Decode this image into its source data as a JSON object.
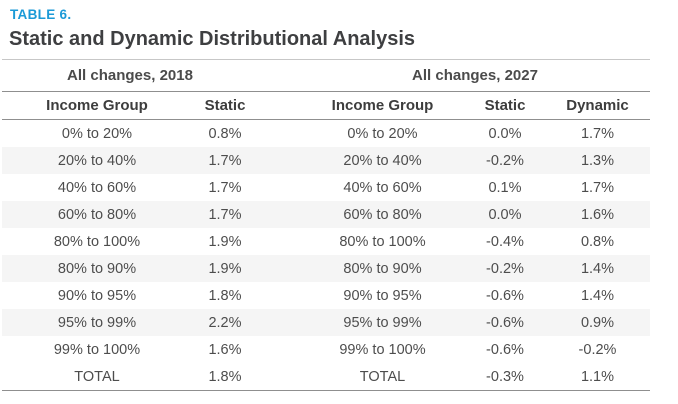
{
  "chart_data": {
    "type": "table",
    "table_label": "TABLE 6.",
    "title": "Static and Dynamic Distributional Analysis",
    "column_groups": [
      "All changes, 2018",
      "All changes, 2027"
    ],
    "columns": [
      "Income Group",
      "Static",
      "Income Group",
      "Static",
      "Dynamic"
    ],
    "rows": [
      [
        "0% to 20%",
        "0.8%",
        "0% to 20%",
        "0.0%",
        "1.7%"
      ],
      [
        "20% to 40%",
        "1.7%",
        "20% to 40%",
        "-0.2%",
        "1.3%"
      ],
      [
        "40% to 60%",
        "1.7%",
        "40% to 60%",
        "0.1%",
        "1.7%"
      ],
      [
        "60% to 80%",
        "1.7%",
        "60% to 80%",
        "0.0%",
        "1.6%"
      ],
      [
        "80% to 100%",
        "1.9%",
        "80% to 100%",
        "-0.4%",
        "0.8%"
      ],
      [
        "80% to 90%",
        "1.9%",
        "80% to 90%",
        "-0.2%",
        "1.4%"
      ],
      [
        "90% to 95%",
        "1.8%",
        "90% to 95%",
        "-0.6%",
        "1.4%"
      ],
      [
        "95% to 99%",
        "2.2%",
        "95% to 99%",
        "-0.6%",
        "0.9%"
      ],
      [
        "99% to 100%",
        "1.6%",
        "99% to 100%",
        "-0.6%",
        "-0.2%"
      ],
      [
        "TOTAL",
        "1.8%",
        "TOTAL",
        "-0.3%",
        "1.1%"
      ]
    ],
    "layout": {
      "striped_rows": "even rows 2,4,6,8 (light gray)",
      "grid": "horizontal rules under title, group headers, column headers and last row"
    }
  },
  "colors": {
    "accent_label": "#1b9ad7",
    "title_text": "#3e3f41",
    "body_text": "#4d4d4d",
    "rule": "#8f8f8f",
    "title_rule": "#c7c7c7",
    "stripe": "#f5f5f5",
    "background": "#ffffff"
  }
}
